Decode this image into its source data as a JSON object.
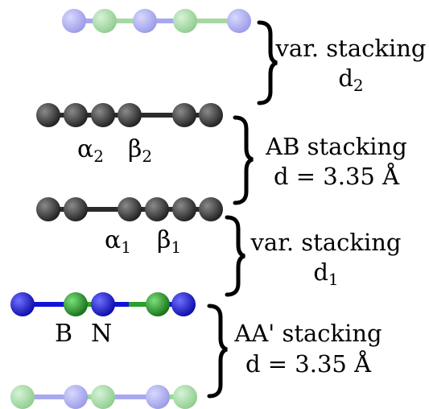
{
  "colors": {
    "background": "#ffffff",
    "carbon": "#3a3a3a",
    "carbon_highlight": "#8a8a8a",
    "boron": "#1f8f1f",
    "boron_highlight": "#7be07b",
    "nitrogen": "#1212d8",
    "nitrogen_highlight": "#6f6fff",
    "faded_boron": "#9bd99b",
    "faded_nitrogen": "#a8a8ee",
    "bond_dark": "#2b2b2b",
    "bond_faded": "#9b9bd8"
  },
  "layers": [
    {
      "id": "hbn-top-faded",
      "atoms": [
        "N",
        "B",
        "N",
        "B",
        "N"
      ],
      "style": "faded"
    },
    {
      "id": "graphene-top",
      "atoms": [
        "C",
        "C",
        "C",
        "C",
        "C",
        "C"
      ],
      "style": "solid"
    },
    {
      "id": "graphene-bottom",
      "atoms": [
        "C",
        "C",
        "C",
        "C",
        "C",
        "C"
      ],
      "style": "solid"
    },
    {
      "id": "hbn-middle",
      "atoms": [
        "N",
        "B",
        "N",
        "B",
        "N"
      ],
      "style": "solid"
    },
    {
      "id": "hbn-bottom-faded",
      "atoms": [
        "B",
        "N",
        "B",
        "N",
        "B"
      ],
      "style": "faded"
    }
  ],
  "site_labels": {
    "alpha2": {
      "base": "α",
      "sub": "2"
    },
    "beta2": {
      "base": "β",
      "sub": "2"
    },
    "alpha1": {
      "base": "α",
      "sub": "1"
    },
    "beta1": {
      "base": "β",
      "sub": "1"
    },
    "boron": "B",
    "nitrogen": "N"
  },
  "brackets": [
    {
      "line1": "var. stacking",
      "line2_base": "d",
      "line2_sub": "2"
    },
    {
      "line1": "AB stacking",
      "line2": "d = 3.35 Å"
    },
    {
      "line1": "var. stacking",
      "line2_base": "d",
      "line2_sub": "1"
    },
    {
      "line1": "AA' stacking",
      "line2": "d = 3.35 Å"
    }
  ]
}
